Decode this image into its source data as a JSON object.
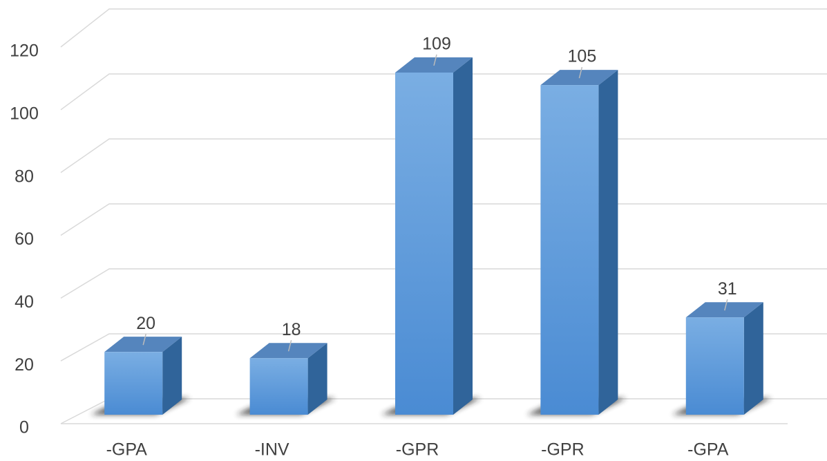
{
  "chart_data": {
    "type": "bar",
    "categories": [
      "-GPA",
      "-INV",
      "-GPR",
      "-GPR",
      "-GPA"
    ],
    "values": [
      20,
      18,
      109,
      105,
      31
    ],
    "color": "#5b9bd5",
    "ylim": [
      0,
      120
    ],
    "yticks": [
      0,
      20,
      40,
      60,
      80,
      100,
      120
    ],
    "grid": true
  }
}
